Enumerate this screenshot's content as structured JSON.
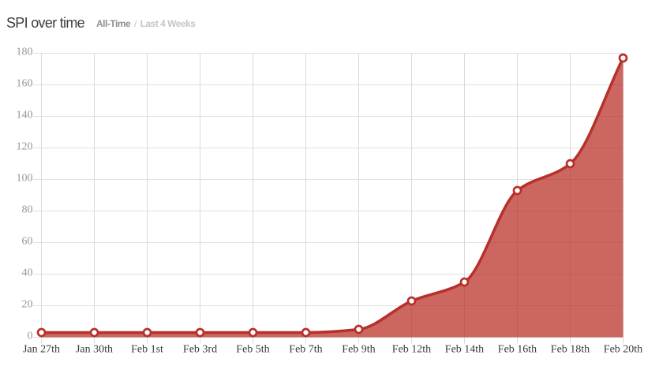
{
  "header": {
    "title": "SPI over time",
    "separator": "/",
    "tabs": [
      {
        "label": "All-Time",
        "active": true
      },
      {
        "label": "Last 4 Weeks",
        "active": false
      }
    ]
  },
  "chart_data": {
    "type": "area",
    "title": "SPI over time",
    "categories": [
      "Jan 27th",
      "Jan 30th",
      "Feb 1st",
      "Feb 3rd",
      "Feb 5th",
      "Feb 7th",
      "Feb 9th",
      "Feb 12th",
      "Feb 14th",
      "Feb 16th",
      "Feb 18th",
      "Feb 20th"
    ],
    "series": [
      {
        "name": "SPI",
        "values": [
          3,
          3,
          3,
          3,
          3,
          3,
          5,
          23,
          35,
          93,
          110,
          177
        ]
      }
    ],
    "xlabel": "",
    "ylabel": "",
    "ylim": [
      0,
      180
    ],
    "ytick_step": 20,
    "grid": true,
    "legend": false,
    "smooth": true,
    "markers": true,
    "colors": {
      "line": "#b7302a",
      "area": "#b9302a",
      "area_opacity": 0.74,
      "marker_fill": "#ffffff",
      "grid_vertical": "#d9d9d9",
      "grid_horizontal": "#e0e0e0",
      "y_tick_label": "#979797",
      "x_tick_label": "#3a3a3a"
    }
  }
}
